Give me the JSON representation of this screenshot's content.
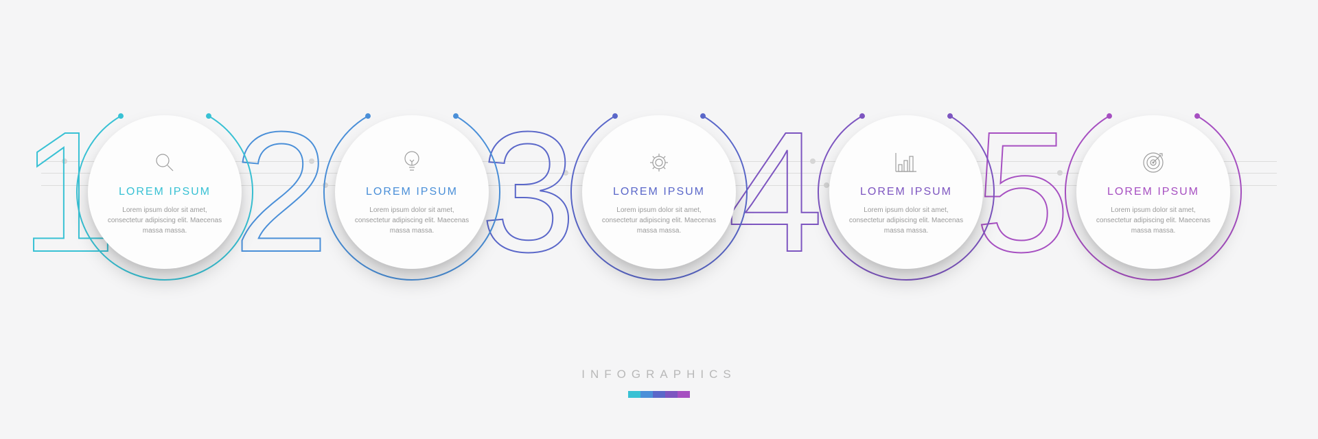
{
  "background_color": "#f5f5f6",
  "footer": {
    "label": "INFOGRAPHICS",
    "label_color": "#b8b8b8",
    "label_fontsize": 17,
    "label_letterspacing": 8,
    "swatch_colors": [
      "#38c1d4",
      "#4a8fd8",
      "#5a67c9",
      "#7d55c0",
      "#a64fc1"
    ]
  },
  "circuit": {
    "line_color": "#dcdcdc",
    "dot_color": "#d6d6d6"
  },
  "ring": {
    "stroke_width": 2,
    "arc_start_deg": -60,
    "arc_end_deg": 240,
    "endpoint_dot_radius": 4
  },
  "disc": {
    "fill": "#fdfdfd",
    "shadow": "0 18px 28px rgba(0,0,0,0.18)"
  },
  "number_style": {
    "fontsize": 250,
    "stroke_width": 2
  },
  "step_title_fontsize": 16,
  "step_desc_fontsize": 10,
  "step_desc_color": "#9a9a9a",
  "icon_stroke_color": "#9d9d9d",
  "steps": [
    {
      "number": "1",
      "color": "#38c1d4",
      "icon": "magnifier-icon",
      "title": "LOREM IPSUM",
      "desc": "Lorem ipsum dolor sit amet, consectetur adipiscing elit. Maecenas massa massa."
    },
    {
      "number": "2",
      "color": "#4a8fd8",
      "icon": "bulb-icon",
      "title": "LOREM IPSUM",
      "desc": "Lorem ipsum dolor sit amet, consectetur adipiscing elit. Maecenas massa massa."
    },
    {
      "number": "3",
      "color": "#5a67c9",
      "icon": "gear-icon",
      "title": "LOREM IPSUM",
      "desc": "Lorem ipsum dolor sit amet, consectetur adipiscing elit. Maecenas massa massa."
    },
    {
      "number": "4",
      "color": "#7d55c0",
      "icon": "bar-chart-icon",
      "title": "LOREM IPSUM",
      "desc": "Lorem ipsum dolor sit amet, consectetur adipiscing elit. Maecenas massa massa."
    },
    {
      "number": "5",
      "color": "#a64fc1",
      "icon": "target-icon",
      "title": "LOREM IPSUM",
      "desc": "Lorem ipsum dolor sit amet, consectetur adipiscing elit. Maecenas massa massa."
    }
  ]
}
